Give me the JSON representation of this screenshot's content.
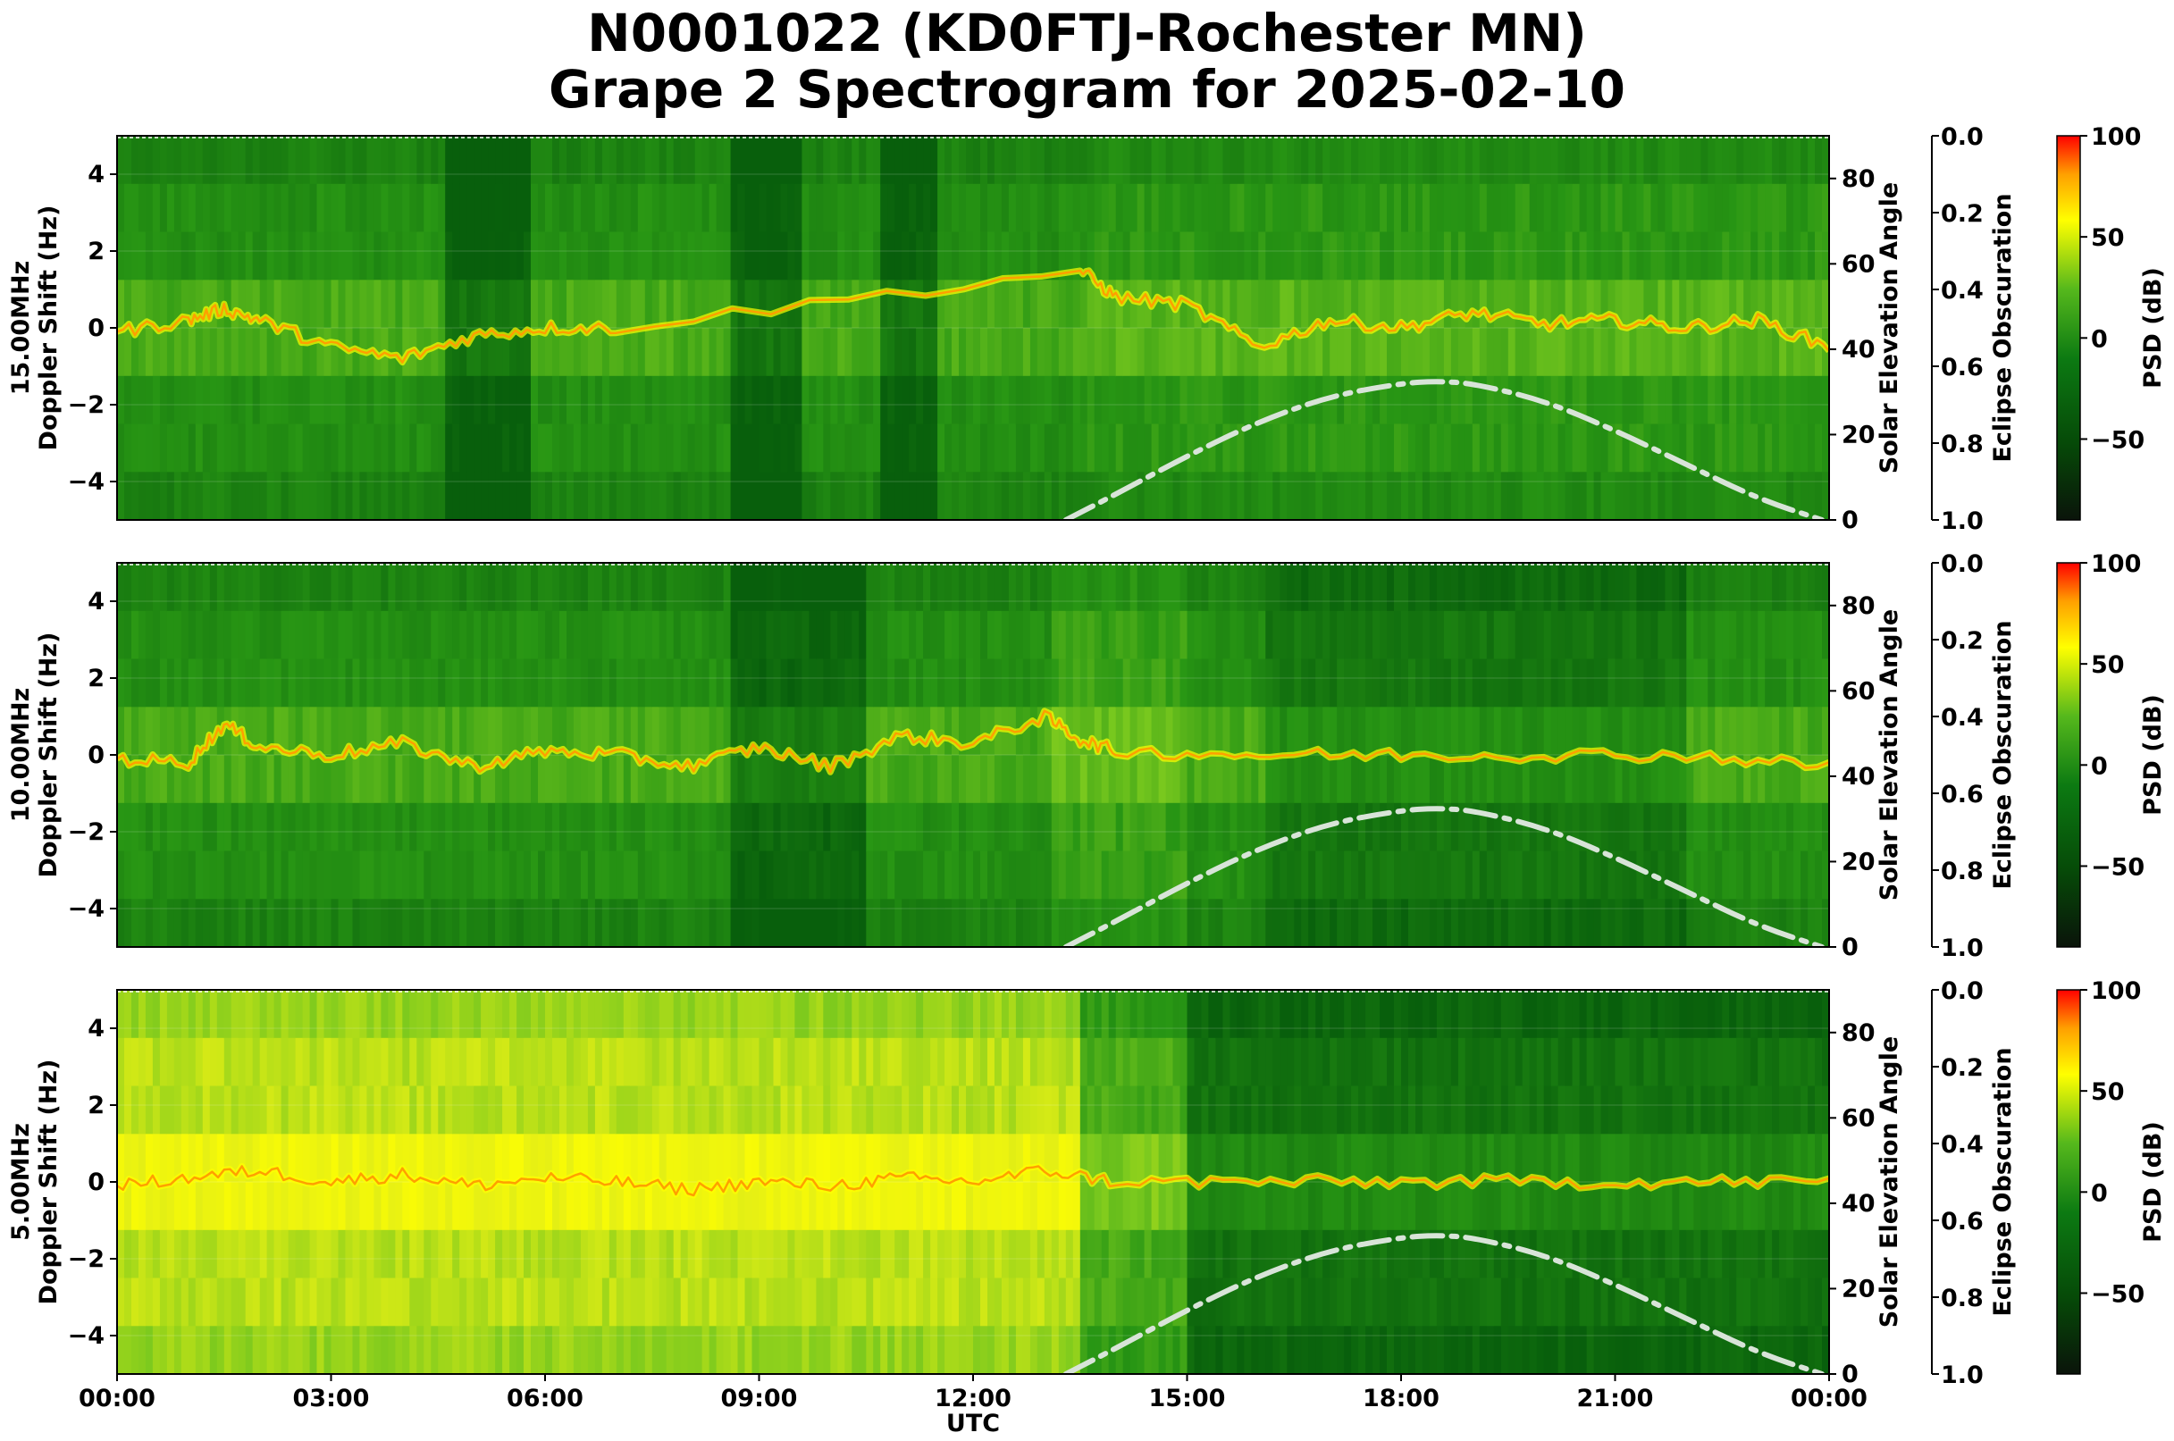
{
  "title_line1": "N0001022 (KD0FTJ-Rochester MN)",
  "title_line2": "Grape 2 Spectrogram for 2025-02-10",
  "colors": {
    "psd_dark": "#0a140a",
    "psd_green": "#0c7a12",
    "psd_mid": "#55b81c",
    "psd_yellow": "#ffff00",
    "psd_orange": "#ffa000",
    "psd_red": "#ff0000",
    "solar_curve": "#d8e4d8"
  },
  "chart_data": [
    {
      "type": "heatmap",
      "panel": "15.00MHz",
      "ylabel_line1": "15.00MHz",
      "ylabel_line2": "Doppler Shift (Hz)",
      "ylim": [
        -5,
        5
      ],
      "yticks": [
        "4",
        "2",
        "0",
        "−2",
        "−4"
      ],
      "right_axis_label": "Solar Elevation Angle",
      "right_ylim": [
        0,
        90
      ],
      "right_ticks": [
        "80",
        "60",
        "40",
        "20",
        "0"
      ],
      "eclipse_axis_label": "Eclipse Obscuration",
      "eclipse_ticks": [
        "0.0",
        "0.2",
        "0.4",
        "0.6",
        "0.8",
        "1.0"
      ],
      "colorbar_label": "PSD (dB)",
      "colorbar_ticks": [
        "100",
        "50",
        "0",
        "−50"
      ],
      "colorbar_range": [
        -90,
        100
      ],
      "doppler_trace_hours": [
        0,
        1,
        1.5,
        2,
        3,
        4,
        5,
        6,
        7,
        13.5,
        14,
        15,
        16,
        17,
        18,
        19,
        20,
        21,
        22,
        23,
        24
      ],
      "doppler_trace_hz": [
        -0.1,
        0.2,
        0.5,
        0.2,
        -0.5,
        -0.8,
        -0.2,
        0.0,
        0.0,
        1.5,
        0.8,
        0.6,
        -0.5,
        0.2,
        0.0,
        0.4,
        0.1,
        0.2,
        0.0,
        0.2,
        -0.5
      ],
      "solar_elevation_hours": [
        13.3,
        14,
        15,
        16,
        17,
        18,
        18.5,
        19,
        20,
        21,
        22,
        23,
        23.9
      ],
      "solar_elevation_deg": [
        0,
        6,
        15,
        23,
        29,
        32,
        32.5,
        32,
        28,
        21,
        13,
        5,
        0
      ]
    },
    {
      "type": "heatmap",
      "panel": "10.00MHz",
      "ylabel_line1": "10.00MHz",
      "ylabel_line2": "Doppler Shift (Hz)",
      "ylim": [
        -5,
        5
      ],
      "yticks": [
        "4",
        "2",
        "0",
        "−2",
        "−4"
      ],
      "right_axis_label": "Solar Elevation Angle",
      "right_ylim": [
        0,
        90
      ],
      "right_ticks": [
        "80",
        "60",
        "40",
        "20",
        "0"
      ],
      "eclipse_axis_label": "Eclipse Obscuration",
      "eclipse_ticks": [
        "0.0",
        "0.2",
        "0.4",
        "0.6",
        "0.8",
        "1.0"
      ],
      "colorbar_label": "PSD (dB)",
      "colorbar_ticks": [
        "100",
        "50",
        "0",
        "−50"
      ],
      "colorbar_range": [
        -90,
        100
      ],
      "doppler_trace_hours": [
        0,
        1,
        1.5,
        2,
        3,
        4,
        5,
        6,
        7,
        8,
        9,
        10,
        11,
        12,
        13,
        13.5,
        14,
        16,
        18,
        20,
        22,
        24
      ],
      "doppler_trace_hz": [
        -0.1,
        -0.2,
        0.8,
        0.2,
        0.0,
        0.3,
        -0.3,
        0.1,
        0.0,
        -0.3,
        0.2,
        -0.3,
        0.5,
        0.3,
        1.0,
        0.4,
        0.1,
        0.0,
        0.0,
        0.0,
        0.0,
        -0.3
      ],
      "solar_elevation_hours": [
        13.3,
        14,
        15,
        16,
        17,
        18,
        18.5,
        19,
        20,
        21,
        22,
        23,
        23.9
      ],
      "solar_elevation_deg": [
        0,
        6,
        15,
        23,
        29,
        32,
        32.5,
        32,
        28,
        21,
        13,
        5,
        0
      ]
    },
    {
      "type": "heatmap",
      "panel": "5.00MHz",
      "ylabel_line1": "5.00MHz",
      "ylabel_line2": "Doppler Shift (Hz)",
      "ylim": [
        -5,
        5
      ],
      "yticks": [
        "4",
        "2",
        "0",
        "−2",
        "−4"
      ],
      "right_axis_label": "Solar Elevation Angle",
      "right_ylim": [
        0,
        90
      ],
      "right_ticks": [
        "80",
        "60",
        "40",
        "20",
        "0"
      ],
      "eclipse_axis_label": "Eclipse Obscuration",
      "eclipse_ticks": [
        "0.0",
        "0.2",
        "0.4",
        "0.6",
        "0.8",
        "1.0"
      ],
      "colorbar_label": "PSD (dB)",
      "colorbar_ticks": [
        "100",
        "50",
        "0",
        "−50"
      ],
      "colorbar_range": [
        -90,
        100
      ],
      "doppler_trace_hours": [
        0,
        1,
        2,
        3,
        4,
        5,
        6,
        7,
        8,
        9,
        10,
        11,
        12,
        13,
        14,
        16,
        18,
        20,
        22,
        24
      ],
      "doppler_trace_hz": [
        -0.1,
        0.1,
        0.3,
        0.0,
        0.2,
        -0.1,
        0.1,
        0.0,
        -0.2,
        0.0,
        -0.1,
        0.1,
        0.0,
        0.3,
        0.0,
        0.0,
        0.0,
        0.0,
        0.0,
        0.0
      ],
      "solar_elevation_hours": [
        13.3,
        14,
        15,
        16,
        17,
        18,
        18.5,
        19,
        20,
        21,
        22,
        23,
        23.9
      ],
      "solar_elevation_deg": [
        0,
        6,
        15,
        23,
        29,
        32,
        32.5,
        32,
        28,
        21,
        13,
        5,
        0
      ]
    }
  ],
  "x_axis": {
    "label": "UTC",
    "ticks": [
      "00:00",
      "03:00",
      "06:00",
      "09:00",
      "12:00",
      "15:00",
      "18:00",
      "21:00",
      "00:00"
    ],
    "xlim_hours": [
      0,
      24
    ]
  }
}
